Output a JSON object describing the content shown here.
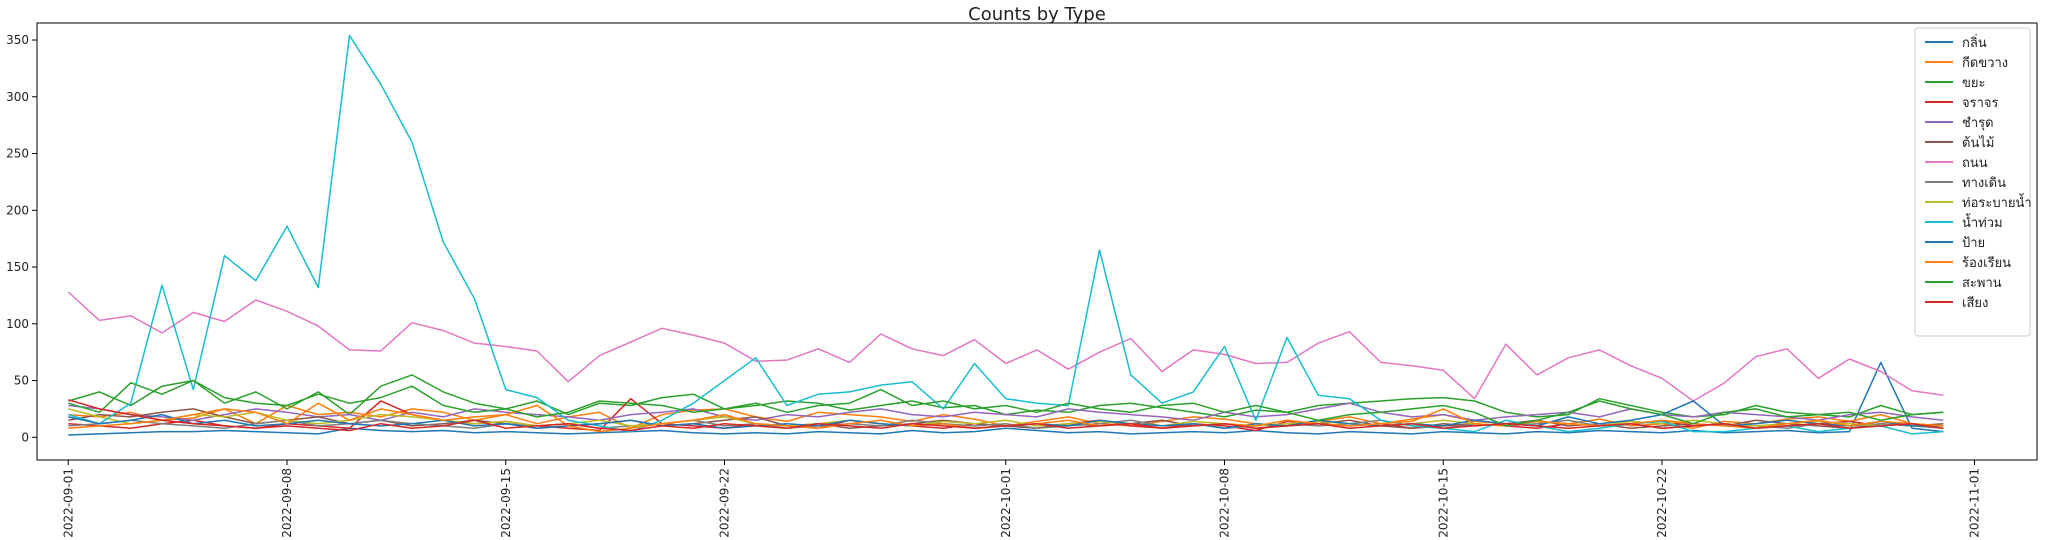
{
  "chart_data": {
    "type": "line",
    "title": "Counts by Type",
    "xlabel": "",
    "ylabel": "",
    "x": [
      "2022-09-01",
      "2022-09-02",
      "2022-09-03",
      "2022-09-04",
      "2022-09-05",
      "2022-09-06",
      "2022-09-07",
      "2022-09-08",
      "2022-09-09",
      "2022-09-10",
      "2022-09-11",
      "2022-09-12",
      "2022-09-13",
      "2022-09-14",
      "2022-09-15",
      "2022-09-16",
      "2022-09-17",
      "2022-09-18",
      "2022-09-19",
      "2022-09-20",
      "2022-09-21",
      "2022-09-22",
      "2022-09-23",
      "2022-09-24",
      "2022-09-25",
      "2022-09-26",
      "2022-09-27",
      "2022-09-28",
      "2022-09-29",
      "2022-09-30",
      "2022-10-01",
      "2022-10-02",
      "2022-10-03",
      "2022-10-04",
      "2022-10-05",
      "2022-10-06",
      "2022-10-07",
      "2022-10-08",
      "2022-10-09",
      "2022-10-10",
      "2022-10-11",
      "2022-10-12",
      "2022-10-13",
      "2022-10-14",
      "2022-10-15",
      "2022-10-16",
      "2022-10-17",
      "2022-10-18",
      "2022-10-19",
      "2022-10-20",
      "2022-10-21",
      "2022-10-22",
      "2022-10-23",
      "2022-10-24",
      "2022-10-25",
      "2022-10-26",
      "2022-10-27",
      "2022-10-28",
      "2022-10-29",
      "2022-10-30",
      "2022-10-31"
    ],
    "x_tick_labels": [
      "2022-09-01",
      "2022-09-08",
      "2022-09-15",
      "2022-09-22",
      "2022-10-01",
      "2022-10-08",
      "2022-10-15",
      "2022-10-22",
      "2022-11-01"
    ],
    "xlim": [
      "2022-08-31",
      "2022-11-03"
    ],
    "ylim": [
      -20,
      365
    ],
    "y_ticks": [
      0,
      50,
      100,
      150,
      200,
      250,
      300,
      350
    ],
    "grid": false,
    "legend_position": "top-right",
    "series": [
      {
        "name": "กลิ่น",
        "color": "#1f77b4",
        "values": [
          2,
          3,
          4,
          5,
          5,
          6,
          5,
          4,
          3,
          8,
          6,
          5,
          6,
          4,
          5,
          4,
          3,
          4,
          5,
          6,
          4,
          3,
          4,
          3,
          5,
          4,
          3,
          6,
          4,
          5,
          8,
          6,
          4,
          5,
          3,
          4,
          5,
          4,
          6,
          4,
          3,
          5,
          4,
          3,
          5,
          4,
          3,
          5,
          4,
          6,
          5,
          4,
          6,
          4,
          5,
          6,
          4,
          5,
          66,
          8,
          5
        ]
      },
      {
        "name": "กีดขวาง",
        "color": "#ff7f0e",
        "values": [
          20,
          18,
          22,
          15,
          17,
          25,
          12,
          28,
          20,
          22,
          18,
          25,
          22,
          15,
          20,
          12,
          18,
          22,
          8,
          20,
          24,
          25,
          18,
          14,
          22,
          20,
          18,
          14,
          20,
          16,
          10,
          14,
          18,
          12,
          10,
          14,
          18,
          16,
          12,
          10,
          14,
          18,
          12,
          16,
          20,
          14,
          12,
          14,
          12,
          16,
          10,
          12,
          8,
          14,
          12,
          16,
          18,
          14,
          20,
          12,
          10
        ]
      },
      {
        "name": "ขยะ",
        "color": "#2ca02c",
        "values": [
          32,
          40,
          28,
          45,
          50,
          30,
          40,
          25,
          40,
          20,
          45,
          55,
          40,
          30,
          25,
          32,
          20,
          30,
          28,
          35,
          38,
          25,
          28,
          32,
          30,
          24,
          28,
          32,
          26,
          28,
          20,
          24,
          22,
          28,
          30,
          26,
          22,
          18,
          24,
          22,
          28,
          30,
          32,
          34,
          35,
          32,
          22,
          18,
          20,
          34,
          28,
          22,
          18,
          20,
          28,
          22,
          20,
          18,
          28,
          20,
          22
        ]
      },
      {
        "name": "จราจร",
        "color": "#d62728",
        "values": [
          12,
          10,
          8,
          12,
          15,
          10,
          8,
          12,
          10,
          8,
          32,
          20,
          15,
          12,
          14,
          10,
          8,
          6,
          34,
          12,
          10,
          8,
          12,
          10,
          8,
          15,
          12,
          10,
          8,
          12,
          10,
          8,
          12,
          15,
          10,
          8,
          12,
          10,
          6,
          14,
          12,
          10,
          12,
          8,
          10,
          12,
          10,
          8,
          12,
          10,
          12,
          14,
          10,
          12,
          8,
          10,
          12,
          14,
          10,
          12,
          10
        ]
      },
      {
        "name": "ชำรุด",
        "color": "#9467bd",
        "values": [
          28,
          25,
          20,
          18,
          15,
          20,
          25,
          22,
          18,
          20,
          15,
          22,
          18,
          25,
          22,
          20,
          18,
          15,
          20,
          22,
          25,
          18,
          15,
          20,
          18,
          22,
          25,
          20,
          18,
          22,
          20,
          18,
          25,
          22,
          20,
          18,
          15,
          22,
          18,
          20,
          25,
          30,
          22,
          18,
          20,
          15,
          18,
          20,
          22,
          18,
          25,
          20,
          18,
          22,
          20,
          18,
          15,
          20,
          22,
          18,
          15
        ]
      },
      {
        "name": "ต้นไม้",
        "color": "#8c564b",
        "values": [
          15,
          20,
          18,
          22,
          25,
          18,
          12,
          15,
          18,
          12,
          15,
          10,
          12,
          15,
          12,
          8,
          10,
          12,
          15,
          10,
          12,
          15,
          18,
          10,
          12,
          8,
          10,
          12,
          15,
          12,
          10,
          8,
          12,
          10,
          12,
          15,
          10,
          12,
          8,
          10,
          12,
          15,
          10,
          8,
          12,
          10,
          12,
          15,
          10,
          12,
          8,
          10,
          12,
          10,
          15,
          12,
          10,
          8,
          12,
          10,
          12
        ]
      },
      {
        "name": "ถนน",
        "color": "#e377c2",
        "values": [
          128,
          103,
          107,
          92,
          110,
          102,
          121,
          111,
          98,
          77,
          76,
          101,
          94,
          83,
          80,
          76,
          49,
          72,
          84,
          96,
          90,
          83,
          67,
          68,
          78,
          66,
          91,
          78,
          72,
          86,
          65,
          77,
          60,
          75,
          87,
          58,
          77,
          73,
          65,
          66,
          83,
          93,
          66,
          63,
          59,
          34,
          82,
          55,
          70,
          77,
          63,
          52,
          32,
          48,
          71,
          78,
          52,
          69,
          58,
          41,
          37
        ]
      },
      {
        "name": "ทางเดิน",
        "color": "#7f7f7f",
        "values": [
          10,
          12,
          15,
          12,
          10,
          8,
          12,
          15,
          10,
          12,
          15,
          12,
          10,
          8,
          12,
          10,
          12,
          8,
          10,
          12,
          15,
          10,
          12,
          8,
          10,
          12,
          10,
          15,
          12,
          10,
          12,
          8,
          10,
          12,
          15,
          10,
          12,
          8,
          10,
          12,
          10,
          12,
          15,
          10,
          8,
          12,
          10,
          12,
          15,
          10,
          12,
          8,
          10,
          12,
          10,
          8,
          12,
          10,
          12,
          10,
          8
        ]
      },
      {
        "name": "ท่อระบายน้ำ",
        "color": "#bcbd22",
        "values": [
          25,
          18,
          12,
          15,
          20,
          18,
          22,
          15,
          12,
          15,
          20,
          18,
          15,
          12,
          14,
          10,
          12,
          15,
          10,
          12,
          15,
          18,
          12,
          10,
          12,
          15,
          12,
          10,
          14,
          12,
          15,
          10,
          12,
          14,
          12,
          10,
          14,
          12,
          10,
          12,
          14,
          12,
          10,
          12,
          15,
          12,
          10,
          14,
          12,
          10,
          14,
          12,
          15,
          12,
          10,
          12,
          14,
          12,
          10,
          12,
          10
        ]
      },
      {
        "name": "น้ำท่วม",
        "color": "#17becf",
        "values": [
          20,
          12,
          30,
          134,
          42,
          160,
          138,
          186,
          132,
          354,
          311,
          260,
          172,
          122,
          42,
          35,
          15,
          10,
          5,
          15,
          30,
          50,
          70,
          28,
          38,
          40,
          46,
          49,
          25,
          65,
          34,
          30,
          28,
          165,
          55,
          30,
          40,
          80,
          15,
          88,
          37,
          34,
          15,
          10,
          8,
          5,
          15,
          10,
          5,
          8,
          12,
          14,
          5,
          5,
          8,
          10,
          5,
          8,
          10,
          3,
          5
        ]
      },
      {
        "name": "ป้าย",
        "color": "#1f77b4",
        "values": [
          18,
          12,
          15,
          20,
          12,
          15,
          10,
          12,
          15,
          12,
          10,
          12,
          15,
          10,
          12,
          8,
          10,
          12,
          15,
          10,
          12,
          8,
          10,
          12,
          10,
          15,
          12,
          10,
          12,
          8,
          10,
          12,
          10,
          15,
          12,
          10,
          12,
          8,
          12,
          10,
          15,
          12,
          10,
          12,
          10,
          15,
          12,
          10,
          18,
          12,
          15,
          20,
          32,
          10,
          12,
          15,
          12,
          10,
          14,
          10,
          10
        ]
      },
      {
        "name": "ร้องเรียน",
        "color": "#ff7f0e",
        "values": [
          8,
          10,
          12,
          15,
          20,
          25,
          22,
          12,
          30,
          15,
          25,
          20,
          15,
          18,
          20,
          28,
          10,
          5,
          8,
          12,
          15,
          20,
          12,
          10,
          8,
          12,
          15,
          10,
          12,
          8,
          10,
          12,
          15,
          10,
          12,
          8,
          10,
          12,
          10,
          15,
          12,
          10,
          12,
          14,
          25,
          12,
          10,
          14,
          12,
          10,
          12,
          15,
          12,
          10,
          8,
          12,
          15,
          10,
          14,
          12,
          10
        ]
      },
      {
        "name": "สะพาน",
        "color": "#2ca02c",
        "values": [
          30,
          22,
          48,
          38,
          50,
          35,
          30,
          28,
          38,
          30,
          35,
          45,
          28,
          22,
          25,
          18,
          22,
          32,
          30,
          28,
          22,
          25,
          30,
          22,
          28,
          30,
          42,
          28,
          32,
          25,
          28,
          22,
          30,
          25,
          22,
          28,
          30,
          22,
          28,
          22,
          15,
          20,
          22,
          25,
          28,
          22,
          10,
          15,
          22,
          32,
          25,
          20,
          12,
          22,
          25,
          18,
          20,
          22,
          15,
          20,
          22
        ]
      },
      {
        "name": "เสียง",
        "color": "#d62728",
        "values": [
          33,
          25,
          20,
          15,
          12,
          10,
          8,
          10,
          8,
          6,
          12,
          8,
          10,
          15,
          8,
          10,
          12,
          8,
          6,
          10,
          8,
          12,
          10,
          8,
          12,
          10,
          8,
          12,
          10,
          8,
          10,
          12,
          8,
          10,
          12,
          8,
          10,
          12,
          8,
          10,
          12,
          8,
          10,
          12,
          8,
          10,
          12,
          10,
          8,
          10,
          12,
          8,
          10,
          12,
          8,
          10,
          12,
          8,
          10,
          12,
          8
        ]
      }
    ]
  }
}
